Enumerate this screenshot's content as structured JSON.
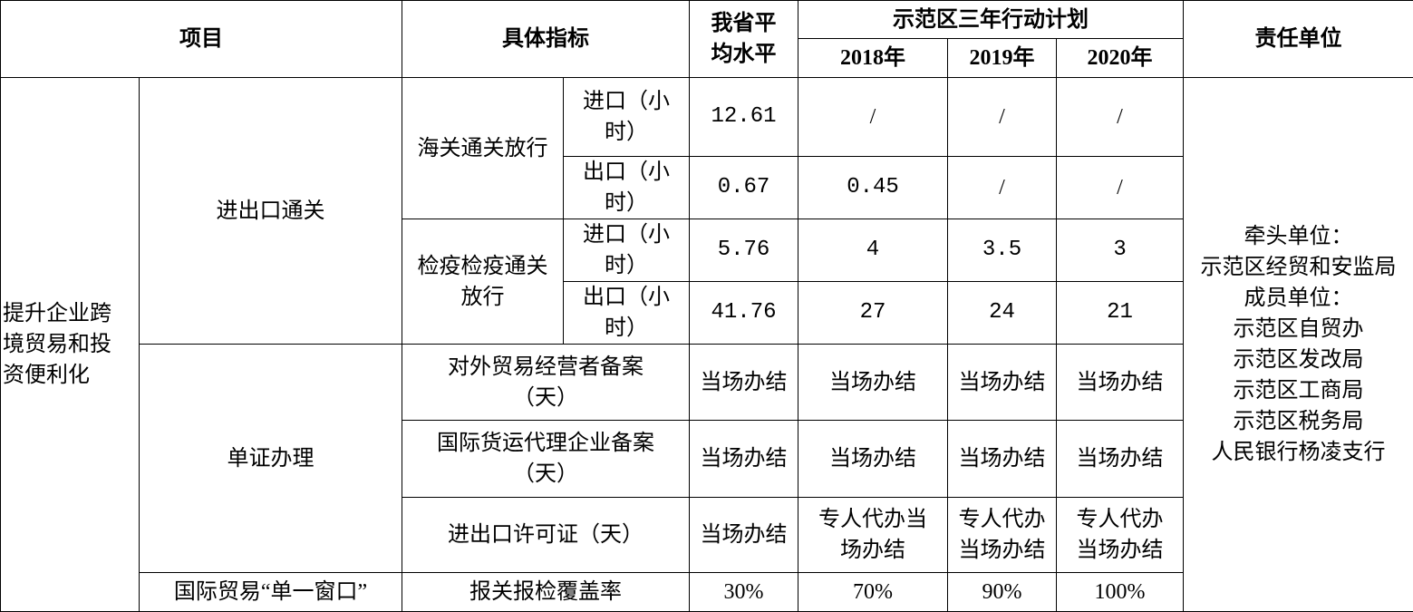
{
  "header": {
    "item": "项目",
    "indicator": "具体指标",
    "province_avg": "我省平\n均水平",
    "plan": "示范区三年行动计划",
    "years": [
      "2018年",
      "2019年",
      "2020年"
    ],
    "responsible": "责任单位"
  },
  "category": "提升企业跨\n境贸易和投\n资便利化",
  "responsible_text": "牵头单位：\n示范区经贸和安监局\n成员单位：\n示范区自贸办\n示范区发改局\n示范区工商局\n示范区税务局\n人民银行杨凌支行",
  "groups": {
    "customs_clearance": "进出口通关",
    "documents": "单证办理",
    "single_window": "国际贸易“单一窗口”"
  },
  "rows": [
    {
      "sub": "海关通关放行",
      "label": "进口（小\n时）",
      "avg": "12.61",
      "y2018": "/",
      "y2019": "/",
      "y2020": "/"
    },
    {
      "label": "出口（小\n时）",
      "avg": "0.67",
      "y2018": "0.45",
      "y2019": "/",
      "y2020": "/"
    },
    {
      "sub": "检疫检疫通关\n放行",
      "label": "进口（小\n时）",
      "avg": "5.76",
      "y2018": "4",
      "y2019": "3.5",
      "y2020": "3"
    },
    {
      "label": "出口（小\n时）",
      "avg": "41.76",
      "y2018": "27",
      "y2019": "24",
      "y2020": "21"
    },
    {
      "label": "对外贸易经营者备案\n（天）",
      "avg": "当场办结",
      "y2018": "当场办结",
      "y2019": "当场办结",
      "y2020": "当场办结"
    },
    {
      "label": "国际货运代理企业备案\n（天）",
      "avg": "当场办结",
      "y2018": "当场办结",
      "y2019": "当场办结",
      "y2020": "当场办结"
    },
    {
      "label": "进出口许可证（天）",
      "avg": "当场办结",
      "y2018": "专人代办当\n场办结",
      "y2019": "专人代办\n当场办结",
      "y2020": "专人代办\n当场办结"
    },
    {
      "label": "报关报检覆盖率",
      "avg": "30%",
      "y2018": "70%",
      "y2019": "90%",
      "y2020": "100%"
    }
  ]
}
